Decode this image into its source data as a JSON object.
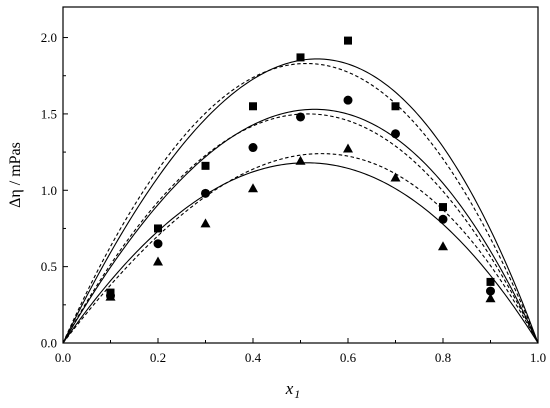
{
  "chart_data": {
    "type": "scatter",
    "xlabel": "x",
    "xlabel_subscript": "1",
    "ylabel": "Δη / mPas",
    "xlim": [
      0.0,
      1.0
    ],
    "ylim": [
      0.0,
      2.2
    ],
    "x_ticks": [
      0.0,
      0.2,
      0.4,
      0.6,
      0.8,
      1.0
    ],
    "x_tick_labels": [
      "0.0",
      "0.2",
      "0.4",
      "0.6",
      "0.8",
      "1.0"
    ],
    "y_ticks": [
      0.0,
      0.5,
      1.0,
      1.5,
      2.0
    ],
    "y_tick_labels": [
      "0.0",
      "0.5",
      "1.0",
      "1.5",
      "2.0"
    ],
    "grid": false,
    "series": [
      {
        "marker": "square",
        "points": [
          [
            0.1,
            0.33
          ],
          [
            0.2,
            0.75
          ],
          [
            0.3,
            1.16
          ],
          [
            0.4,
            1.55
          ],
          [
            0.5,
            1.87
          ],
          [
            0.6,
            1.98
          ],
          [
            0.7,
            1.55
          ],
          [
            0.8,
            0.89
          ],
          [
            0.9,
            0.4
          ]
        ],
        "fit_solid": {
          "peak_x": 0.56,
          "peak_y": 1.86,
          "asymmetry": 0.14
        },
        "fit_dashed": {
          "peak_x": 0.52,
          "peak_y": 1.83,
          "asymmetry": 0.05
        }
      },
      {
        "marker": "circle",
        "points": [
          [
            0.1,
            0.31
          ],
          [
            0.2,
            0.65
          ],
          [
            0.3,
            0.98
          ],
          [
            0.4,
            1.28
          ],
          [
            0.5,
            1.48
          ],
          [
            0.6,
            1.59
          ],
          [
            0.7,
            1.37
          ],
          [
            0.8,
            0.81
          ],
          [
            0.9,
            0.34
          ]
        ],
        "fit_solid": {
          "peak_x": 0.55,
          "peak_y": 1.53,
          "asymmetry": 0.12
        },
        "fit_dashed": {
          "peak_x": 0.52,
          "peak_y": 1.5,
          "asymmetry": 0.06
        }
      },
      {
        "marker": "triangle",
        "points": [
          [
            0.1,
            0.3
          ],
          [
            0.2,
            0.53
          ],
          [
            0.3,
            0.78
          ],
          [
            0.4,
            1.01
          ],
          [
            0.5,
            1.19
          ],
          [
            0.6,
            1.27
          ],
          [
            0.7,
            1.08
          ],
          [
            0.8,
            0.63
          ],
          [
            0.9,
            0.29
          ]
        ],
        "fit_solid": {
          "peak_x": 0.52,
          "peak_y": 1.18,
          "asymmetry": 0.05
        },
        "fit_dashed": {
          "peak_x": 0.58,
          "peak_y": 1.24,
          "asymmetry": 0.18
        }
      }
    ]
  }
}
